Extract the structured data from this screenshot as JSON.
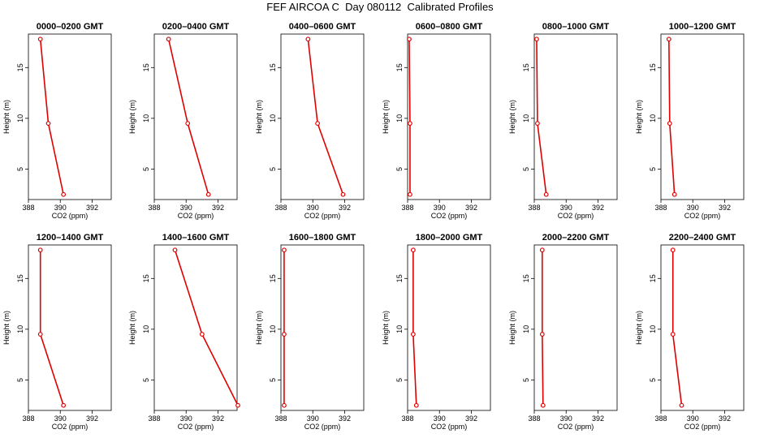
{
  "title": "FEF AIRCOA C  Day 080112  Calibrated Profiles",
  "chart_data": {
    "type": "line",
    "xlabel": "CO2 (ppm)",
    "ylabel": "Height (m)",
    "xlim": [
      388,
      393.2
    ],
    "ylim": [
      2,
      18.3
    ],
    "x_ticks": [
      "388",
      "390",
      "392"
    ],
    "y_ticks": [
      "5",
      "10",
      "15"
    ],
    "line_color": "#e00000",
    "heights": [
      2.5,
      9.5,
      17.8
    ],
    "panels": [
      {
        "title": "0000–0200 GMT",
        "co2": [
          390.2,
          389.25,
          388.75
        ]
      },
      {
        "title": "0200–0400 GMT",
        "co2": [
          391.4,
          390.1,
          388.9
        ]
      },
      {
        "title": "0400–0600 GMT",
        "co2": [
          391.9,
          390.3,
          389.7
        ]
      },
      {
        "title": "0600–0800 GMT",
        "co2": [
          388.15,
          388.15,
          388.1
        ]
      },
      {
        "title": "0800–1000 GMT",
        "co2": [
          388.75,
          388.2,
          388.15
        ]
      },
      {
        "title": "1000–1200 GMT",
        "co2": [
          388.85,
          388.55,
          388.5
        ]
      },
      {
        "title": "1200–1400 GMT",
        "co2": [
          390.2,
          388.75,
          388.75
        ]
      },
      {
        "title": "1400–1600 GMT",
        "co2": [
          393.25,
          391.0,
          389.3
        ]
      },
      {
        "title": "1600–1800 GMT",
        "co2": [
          388.2,
          388.2,
          388.2
        ]
      },
      {
        "title": "1800–2000 GMT",
        "co2": [
          388.55,
          388.35,
          388.35
        ]
      },
      {
        "title": "2000–2200 GMT",
        "co2": [
          388.55,
          388.5,
          388.5
        ]
      },
      {
        "title": "2200–2400 GMT",
        "co2": [
          389.3,
          388.75,
          388.75
        ]
      }
    ]
  }
}
